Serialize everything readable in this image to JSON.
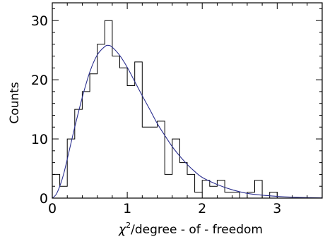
{
  "chart_data": {
    "type": "histogram",
    "xlabel_symbol": "χ",
    "xlabel_superscript": "2",
    "xlabel_rest": "/degree - of - freedom",
    "ylabel": "Counts",
    "xlim": [
      0,
      3.6
    ],
    "ylim": [
      0,
      33
    ],
    "x_ticks": [
      0,
      1,
      2,
      3
    ],
    "x_tick_labels": [
      "0",
      "1",
      "2",
      "3"
    ],
    "y_ticks": [
      0,
      10,
      20,
      30
    ],
    "y_tick_labels": [
      "0",
      "10",
      "20",
      "30"
    ],
    "bin_width": 0.1,
    "bins_left_edges": [
      0.0,
      0.1,
      0.2,
      0.3,
      0.4,
      0.5,
      0.6,
      0.7,
      0.8,
      0.9,
      1.0,
      1.1,
      1.2,
      1.3,
      1.4,
      1.5,
      1.6,
      1.7,
      1.8,
      1.9,
      2.0,
      2.1,
      2.2,
      2.3,
      2.4,
      2.5,
      2.6,
      2.7,
      2.8,
      2.9,
      3.0,
      3.1,
      3.2,
      3.3,
      3.4,
      3.5
    ],
    "counts": [
      4,
      2,
      10,
      15,
      18,
      21,
      26,
      30,
      24,
      22,
      19,
      23,
      12,
      12,
      13,
      4,
      10,
      6,
      4,
      1,
      3,
      2,
      3,
      1,
      1,
      0,
      1,
      3,
      0,
      1,
      0,
      0,
      0,
      0,
      0,
      0
    ],
    "fit_x": [
      0.0,
      0.05,
      0.1,
      0.15,
      0.2,
      0.3,
      0.4,
      0.5,
      0.6,
      0.7,
      0.75,
      0.8,
      0.9,
      1.0,
      1.1,
      1.2,
      1.3,
      1.4,
      1.5,
      1.6,
      1.7,
      1.8,
      1.9,
      2.0,
      2.2,
      2.4,
      2.6,
      2.8,
      3.0,
      3.2,
      3.4,
      3.6
    ],
    "fit_y": [
      0.0,
      0.6,
      2.0,
      4.0,
      6.6,
      12.0,
      17.0,
      21.3,
      24.2,
      25.6,
      25.8,
      25.5,
      24.1,
      22.1,
      19.7,
      17.3,
      15.0,
      12.6,
      10.6,
      8.7,
      7.1,
      5.7,
      4.5,
      3.5,
      2.3,
      1.4,
      0.8,
      0.5,
      0.3,
      0.15,
      0.08,
      0.04
    ],
    "colors": {
      "histogram": "#000000",
      "fit": "#2b2f8f",
      "axes": "#000000"
    }
  }
}
